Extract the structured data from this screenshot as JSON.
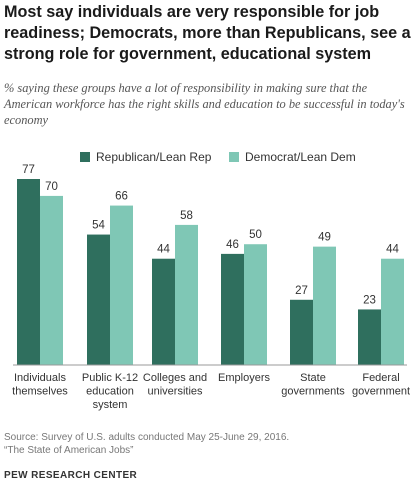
{
  "header": {
    "title": "Most say individuals are very responsible for job readiness; Democrats, more than Republicans, see a strong role for government, educational system",
    "subtitle": "% saying these groups have a lot of responsibility in making sure that the American workforce has the right skills and education to be successful in today's economy"
  },
  "chart_data": {
    "type": "bar",
    "categories": [
      [
        "Individuals",
        "themselves"
      ],
      [
        "Public K-12",
        "education",
        "system"
      ],
      [
        "Colleges and",
        "universities"
      ],
      [
        "Employers"
      ],
      [
        "State",
        "governments"
      ],
      [
        "Federal",
        "government"
      ]
    ],
    "series": [
      {
        "name": "Republican/Lean Rep",
        "color": "#2f6f5e",
        "values": [
          77,
          54,
          44,
          46,
          27,
          23
        ]
      },
      {
        "name": "Democrat/Lean Dem",
        "color": "#7fc7b5",
        "values": [
          70,
          66,
          58,
          50,
          49,
          44
        ]
      }
    ],
    "ylim": [
      0,
      100
    ],
    "grid": false,
    "legend_position": "top-right",
    "data_labels": true
  },
  "footer": {
    "source_line1": "Source: Survey of U.S. adults conducted May 25-June 29, 2016.",
    "source_line2": "“The State of American Jobs”",
    "org": "PEW RESEARCH CENTER"
  }
}
